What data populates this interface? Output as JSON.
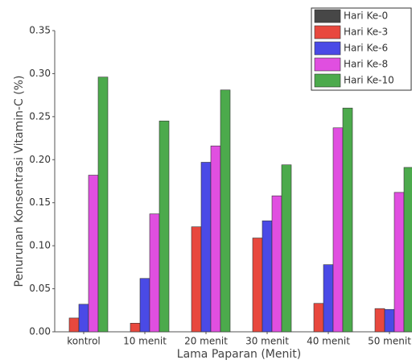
{
  "chart_data": {
    "type": "bar",
    "xlabel": "Lama Paparan (Menit)",
    "ylabel": "Penurunan Konsentrasi Vitamin-C (%)",
    "categories": [
      "kontrol",
      "10 menit",
      "20 menit",
      "30 menit",
      "40 menit",
      "50 menit"
    ],
    "series": [
      {
        "name": "Hari Ke-0",
        "color": "#474747",
        "values": [
          0,
          0,
          0,
          0,
          0,
          0
        ]
      },
      {
        "name": "Hari Ke-3",
        "color": "#e8483e",
        "values": [
          0.016,
          0.01,
          0.122,
          0.109,
          0.033,
          0.027
        ]
      },
      {
        "name": "Hari Ke-6",
        "color": "#4a4ae6",
        "values": [
          0.032,
          0.062,
          0.197,
          0.129,
          0.078,
          0.026
        ]
      },
      {
        "name": "Hari Ke-8",
        "color": "#e04fe0",
        "values": [
          0.182,
          0.137,
          0.216,
          0.158,
          0.237,
          0.162
        ]
      },
      {
        "name": "Hari Ke-10",
        "color": "#4caa4c",
        "values": [
          0.296,
          0.245,
          0.281,
          0.194,
          0.26,
          0.191
        ]
      }
    ],
    "ylim": [
      0,
      0.35
    ],
    "yticks": [
      {
        "value": 0,
        "label": "0.00"
      },
      0.05,
      {
        "value": 0.1,
        "label": "0.10"
      },
      0.15,
      {
        "value": 0.2,
        "label": "0.20"
      },
      0.25,
      {
        "value": 0.3,
        "label": "0.30"
      },
      0.35
    ],
    "legend": "upper right"
  }
}
